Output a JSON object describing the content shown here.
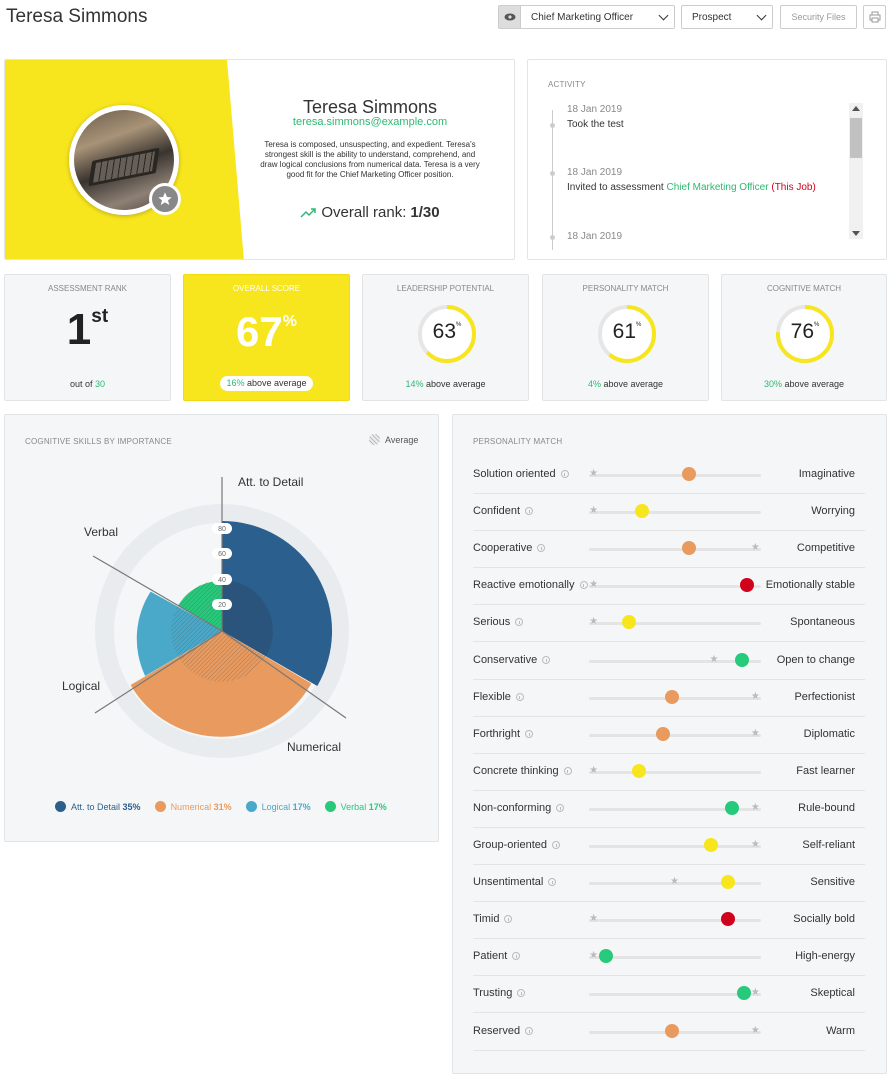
{
  "header": {
    "title": "Teresa Simmons",
    "job_select": "Chief Marketing Officer",
    "stage_select": "Prospect",
    "security_files_label": "Security Files"
  },
  "profile": {
    "name": "Teresa Simmons",
    "email": "teresa.simmons@example.com",
    "description": "Teresa is composed, unsuspecting, and expedient. Teresa's strongest skill is the ability to understand, comprehend, and draw logical conclusions from numerical data. Teresa is a very good fit for the Chief Marketing Officer position.",
    "rank_label": "Overall rank: ",
    "rank_value": "1/30"
  },
  "activity": {
    "title": "ACTIVITY",
    "items": [
      {
        "date": "18 Jan 2019",
        "text": "Took the test"
      },
      {
        "date": "18 Jan 2019",
        "text": "Invited to assessment ",
        "link": "Chief Marketing Officer",
        "tag": "(This Job)"
      },
      {
        "date": "18 Jan 2019"
      }
    ]
  },
  "stats": {
    "assessment_rank": {
      "title": "ASSESSMENT RANK",
      "value": "1",
      "suffix": "st",
      "foot_pre": "out of ",
      "foot_num": "30"
    },
    "overall_score": {
      "title": "OVERALL SCORE",
      "value": "67",
      "suffix": "%",
      "foot_num": "16%",
      "foot_text": " above average",
      "color": "#f7e51d"
    },
    "leadership": {
      "title": "LEADERSHIP POTENTIAL",
      "value": "63",
      "percent": 63,
      "foot_num": "14%",
      "foot_text": " above average"
    },
    "personality": {
      "title": "PERSONALITY MATCH",
      "value": "61",
      "percent": 61,
      "foot_num": "4%",
      "foot_text": " above average"
    },
    "cognitive": {
      "title": "COGNITIVE MATCH",
      "value": "76",
      "percent": 76,
      "foot_num": "30%",
      "foot_text": " above average"
    }
  },
  "cognitive_chart": {
    "title": "COGNITIVE SKILLS BY IMPORTANCE",
    "average_label": "Average",
    "labels": {
      "detail": "Att. to Detail",
      "verbal": "Verbal",
      "logical": "Logical",
      "numerical": "Numerical"
    },
    "ticks": [
      "80",
      "60",
      "40",
      "20"
    ],
    "chart_data": {
      "type": "polar-area",
      "categories": [
        "Att. to Detail",
        "Numerical",
        "Logical",
        "Verbal"
      ],
      "importance_percent": [
        35,
        31,
        17,
        17
      ],
      "colors": [
        "#2b5f8e",
        "#e89a5f",
        "#4aa8c8",
        "#27c97b"
      ]
    },
    "legend": [
      {
        "name": "Att. to Detail",
        "pct": "35%",
        "color": "#2b5f8e"
      },
      {
        "name": "Numerical",
        "pct": "31%",
        "color": "#e89a5f"
      },
      {
        "name": "Logical",
        "pct": "17%",
        "color": "#4aa8c8"
      },
      {
        "name": "Verbal",
        "pct": "17%",
        "color": "#27c97b"
      }
    ]
  },
  "personality_match": {
    "title": "PERSONALITY MATCH",
    "rows": [
      {
        "left": "Solution oriented",
        "right": "Imaginative",
        "value": 0.58,
        "star": 0.03,
        "color": "#e89a5f"
      },
      {
        "left": "Confident",
        "right": "Worrying",
        "value": 0.31,
        "star": 0.03,
        "color": "#f7e51d"
      },
      {
        "left": "Cooperative",
        "right": "Competitive",
        "value": 0.58,
        "star": 0.97,
        "color": "#e89a5f"
      },
      {
        "left": "Reactive emotionally",
        "right": "Emotionally stable",
        "value": 0.92,
        "star": 0.03,
        "color": "#d0021b"
      },
      {
        "left": "Serious",
        "right": "Spontaneous",
        "value": 0.23,
        "star": 0.03,
        "color": "#f7e51d"
      },
      {
        "left": "Conservative",
        "right": "Open to change",
        "value": 0.89,
        "star": 0.73,
        "color": "#27c97b"
      },
      {
        "left": "Flexible",
        "right": "Perfectionist",
        "value": 0.48,
        "star": 0.97,
        "color": "#e89a5f"
      },
      {
        "left": "Forthright",
        "right": "Diplomatic",
        "value": 0.43,
        "star": 0.97,
        "color": "#e89a5f"
      },
      {
        "left": "Concrete thinking",
        "right": "Fast learner",
        "value": 0.29,
        "star": 0.03,
        "color": "#f7e51d"
      },
      {
        "left": "Non-conforming",
        "right": "Rule-bound",
        "value": 0.83,
        "star": 0.97,
        "color": "#27c97b"
      },
      {
        "left": "Group-oriented",
        "right": "Self-reliant",
        "value": 0.71,
        "star": 0.97,
        "color": "#f7e51d"
      },
      {
        "left": "Unsentimental",
        "right": "Sensitive",
        "value": 0.81,
        "star": 0.5,
        "color": "#f7e51d"
      },
      {
        "left": "Timid",
        "right": "Socially bold",
        "value": 0.81,
        "star": 0.03,
        "color": "#d0021b"
      },
      {
        "left": "Patient",
        "right": "High-energy",
        "value": 0.1,
        "star": 0.03,
        "color": "#27c97b"
      },
      {
        "left": "Trusting",
        "right": "Skeptical",
        "value": 0.9,
        "star": 0.97,
        "color": "#27c97b"
      },
      {
        "left": "Reserved",
        "right": "Warm",
        "value": 0.48,
        "star": 0.97,
        "color": "#e89a5f"
      }
    ]
  }
}
